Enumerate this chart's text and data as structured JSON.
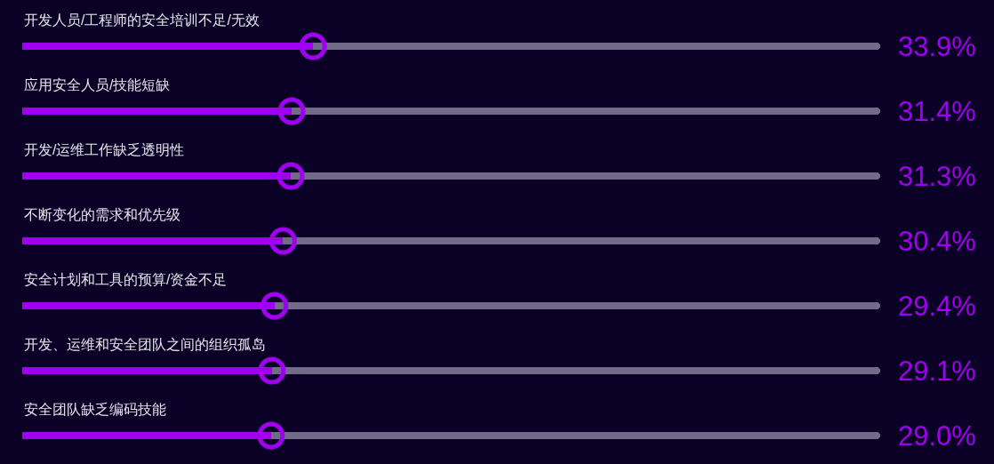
{
  "chart_data": {
    "type": "bar",
    "orientation": "horizontal",
    "stacked": true,
    "categories": [
      "开发人员/工程师的安全培训不足/无效",
      "应用安全人员/技能短缺",
      "开发/运维工作缺乏透明性",
      "不断变化的需求和优先级",
      "安全计划和工具的预算/资金不足",
      "开发、运维和安全团队之间的组织孤岛",
      "安全团队缺乏编码技能"
    ],
    "series": [
      {
        "color": "#a000f0",
        "values": [
          33.9,
          31.4,
          31.3,
          30.4,
          29.4,
          29.1,
          29.0
        ],
        "value_labels": [
          "33.9%",
          "31.4%",
          "31.3%",
          "30.4%",
          "29.4%",
          "29.1%",
          "29.0%"
        ]
      },
      {
        "color": "#716a88",
        "values": [
          66.1,
          68.6,
          68.7,
          69.6,
          70.6,
          70.9,
          71.0
        ]
      }
    ],
    "tick_labels": "y"
  }
}
